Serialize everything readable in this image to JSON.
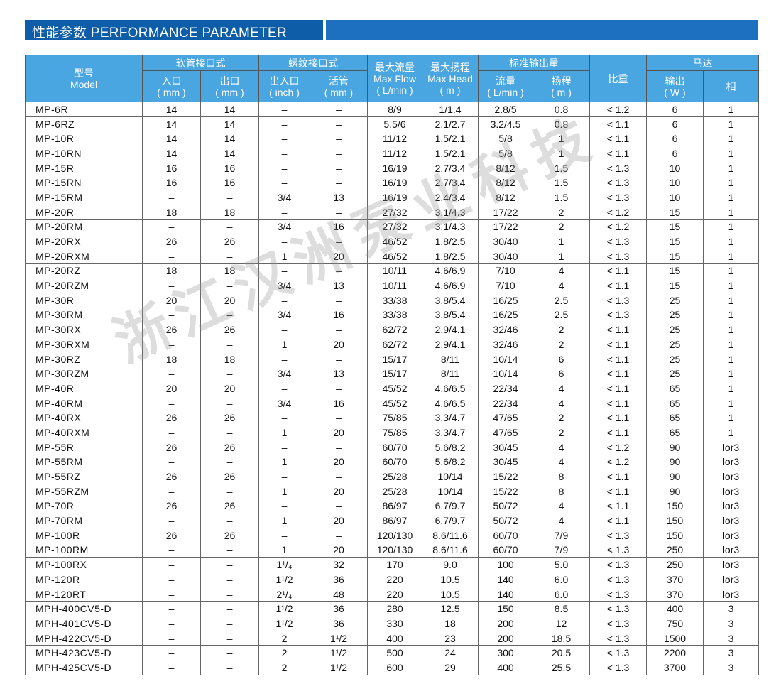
{
  "header": {
    "title": "性能参数 PERFORMANCE PARAMETER"
  },
  "watermark": "浙江汉洲泵业科技",
  "table": {
    "head_row1": [
      [
        "型号",
        "Model"
      ],
      [
        "软管接口式"
      ],
      [
        "螺纹接口式"
      ],
      [
        "最大流量",
        "Max Flow",
        "( L/min )"
      ],
      [
        "最大扬程",
        "Max Head",
        "( m )"
      ],
      [
        "标准输出量"
      ],
      [
        "比重"
      ],
      [
        "马达"
      ]
    ],
    "head_row2": [
      [
        "入口",
        "( mm )"
      ],
      [
        "出口",
        "( mm )"
      ],
      [
        "出入口",
        "( inch )"
      ],
      [
        "活管",
        "( mm )"
      ],
      [
        "流量",
        "( L/min )"
      ],
      [
        "扬程",
        "( m )"
      ],
      [
        "输出",
        "( W )"
      ],
      [
        "相"
      ]
    ],
    "rows": [
      [
        "MP-6R",
        "14",
        "14",
        "–",
        "–",
        "8/9",
        "1/1.4",
        "2.8/5",
        "0.8",
        "< 1.2",
        "6",
        "1"
      ],
      [
        "MP-6RZ",
        "14",
        "14",
        "–",
        "–",
        "5.5/6",
        "2.1/2.7",
        "3.2/4.5",
        "0.8",
        "< 1.1",
        "6",
        "1"
      ],
      [
        "MP-10R",
        "14",
        "14",
        "–",
        "–",
        "11/12",
        "1.5/2.1",
        "5/8",
        "1",
        "< 1.1",
        "6",
        "1"
      ],
      [
        "MP-10RN",
        "14",
        "14",
        "–",
        "–",
        "11/12",
        "1.5/2.1",
        "5/8",
        "1",
        "< 1.1",
        "6",
        "1"
      ],
      [
        "MP-15R",
        "16",
        "16",
        "–",
        "–",
        "16/19",
        "2.7/3.4",
        "8/12",
        "1.5",
        "< 1.3",
        "10",
        "1"
      ],
      [
        "MP-15RN",
        "16",
        "16",
        "–",
        "–",
        "16/19",
        "2.7/3.4",
        "8/12",
        "1.5",
        "< 1.3",
        "10",
        "1"
      ],
      [
        "MP-15RM",
        "–",
        "–",
        "3/4",
        "13",
        "16/19",
        "2.4/3.4",
        "8/12",
        "1.5",
        "< 1.3",
        "10",
        "1"
      ],
      [
        "MP-20R",
        "18",
        "18",
        "–",
        "–",
        "27/32",
        "3.1/4.3",
        "17/22",
        "2",
        "< 1.2",
        "15",
        "1"
      ],
      [
        "MP-20RM",
        "–",
        "–",
        "3/4",
        "16",
        "27/32",
        "3.1/4.3",
        "17/22",
        "2",
        "< 1.2",
        "15",
        "1"
      ],
      [
        "MP-20RX",
        "26",
        "26",
        "–",
        "–",
        "46/52",
        "1.8/2.5",
        "30/40",
        "1",
        "< 1.3",
        "15",
        "1"
      ],
      [
        "MP-20RXM",
        "–",
        "–",
        "1",
        "20",
        "46/52",
        "1.8/2.5",
        "30/40",
        "1",
        "< 1.3",
        "15",
        "1"
      ],
      [
        "MP-20RZ",
        "18",
        "18",
        "–",
        "–",
        "10/11",
        "4.6/6.9",
        "7/10",
        "4",
        "< 1.1",
        "15",
        "1"
      ],
      [
        "MP-20RZM",
        "–",
        "–",
        "3/4",
        "13",
        "10/11",
        "4.6/6.9",
        "7/10",
        "4",
        "< 1.1",
        "15",
        "1"
      ],
      [
        "MP-30R",
        "20",
        "20",
        "–",
        "–",
        "33/38",
        "3.8/5.4",
        "16/25",
        "2.5",
        "< 1.3",
        "25",
        "1"
      ],
      [
        "MP-30RM",
        "–",
        "–",
        "3/4",
        "16",
        "33/38",
        "3.8/5.4",
        "16/25",
        "2.5",
        "< 1.3",
        "25",
        "1"
      ],
      [
        "MP-30RX",
        "26",
        "26",
        "–",
        "–",
        "62/72",
        "2.9/4.1",
        "32/46",
        "2",
        "< 1.1",
        "25",
        "1"
      ],
      [
        "MP-30RXM",
        "–",
        "–",
        "1",
        "20",
        "62/72",
        "2.9/4.1",
        "32/46",
        "2",
        "< 1.1",
        "25",
        "1"
      ],
      [
        "MP-30RZ",
        "18",
        "18",
        "–",
        "–",
        "15/17",
        "8/11",
        "10/14",
        "6",
        "< 1.1",
        "25",
        "1"
      ],
      [
        "MP-30RZM",
        "–",
        "–",
        "3/4",
        "13",
        "15/17",
        "8/11",
        "10/14",
        "6",
        "< 1.1",
        "25",
        "1"
      ],
      [
        "MP-40R",
        "20",
        "20",
        "–",
        "–",
        "45/52",
        "4.6/6.5",
        "22/34",
        "4",
        "< 1.1",
        "65",
        "1"
      ],
      [
        "MP-40RM",
        "–",
        "–",
        "3/4",
        "16",
        "45/52",
        "4.6/6.5",
        "22/34",
        "4",
        "< 1.1",
        "65",
        "1"
      ],
      [
        "MP-40RX",
        "26",
        "26",
        "–",
        "–",
        "75/85",
        "3.3/4.7",
        "47/65",
        "2",
        "< 1.1",
        "65",
        "1"
      ],
      [
        "MP-40RXM",
        "–",
        "–",
        "1",
        "20",
        "75/85",
        "3.3/4.7",
        "47/65",
        "2",
        "< 1.1",
        "65",
        "1"
      ],
      [
        "MP-55R",
        "26",
        "26",
        "–",
        "–",
        "60/70",
        "5.6/8.2",
        "30/45",
        "4",
        "< 1.2",
        "90",
        "lor3"
      ],
      [
        "MP-55RM",
        "–",
        "–",
        "1",
        "20",
        "60/70",
        "5.6/8.2",
        "30/45",
        "4",
        "< 1.2",
        "90",
        "lor3"
      ],
      [
        "MP-55RZ",
        "26",
        "26",
        "–",
        "–",
        "25/28",
        "10/14",
        "15/22",
        "8",
        "< 1.1",
        "90",
        "lor3"
      ],
      [
        "MP-55RZM",
        "–",
        "–",
        "1",
        "20",
        "25/28",
        "10/14",
        "15/22",
        "8",
        "< 1.1",
        "90",
        "lor3"
      ],
      [
        "MP-70R",
        "26",
        "26",
        "–",
        "–",
        "86/97",
        "6.7/9.7",
        "50/72",
        "4",
        "< 1.1",
        "150",
        "lor3"
      ],
      [
        "MP-70RM",
        "–",
        "–",
        "1",
        "20",
        "86/97",
        "6.7/9.7",
        "50/72",
        "4",
        "< 1.1",
        "150",
        "lor3"
      ],
      [
        "MP-100R",
        "26",
        "26",
        "–",
        "–",
        "120/130",
        "8.6/11.6",
        "60/70",
        "7/9",
        "< 1.3",
        "150",
        "lor3"
      ],
      [
        "MP-100RM",
        "–",
        "–",
        "1",
        "20",
        "120/130",
        "8.6/11.6",
        "60/70",
        "7/9",
        "< 1.3",
        "250",
        "lor3"
      ],
      [
        "MP-100RX",
        "–",
        "–",
        "1¹/₄",
        "32",
        "170",
        "9.0",
        "100",
        "5.0",
        "< 1.3",
        "250",
        "lor3"
      ],
      [
        "MP-120R",
        "–",
        "–",
        "1¹/2",
        "36",
        "220",
        "10.5",
        "140",
        "6.0",
        "< 1.3",
        "370",
        "lor3"
      ],
      [
        "MP-120RT",
        "–",
        "–",
        "2¹/₄",
        "48",
        "220",
        "10.5",
        "140",
        "6.0",
        "< 1.3",
        "370",
        "lor3"
      ],
      [
        "MPH-400CV5-D",
        "–",
        "–",
        "1¹/2",
        "36",
        "280",
        "12.5",
        "150",
        "8.5",
        "< 1.3",
        "400",
        "3"
      ],
      [
        "MPH-401CV5-D",
        "–",
        "–",
        "1¹/2",
        "36",
        "330",
        "18",
        "200",
        "12",
        "< 1.3",
        "750",
        "3"
      ],
      [
        "MPH-422CV5-D",
        "–",
        "–",
        "2",
        "1¹/2",
        "400",
        "23",
        "200",
        "18.5",
        "< 1.3",
        "1500",
        "3"
      ],
      [
        "MPH-423CV5-D",
        "–",
        "–",
        "2",
        "1¹/2",
        "500",
        "24",
        "300",
        "20.5",
        "< 1.3",
        "2200",
        "3"
      ],
      [
        "MPH-425CV5-D",
        "–",
        "–",
        "2",
        "1¹/2",
        "600",
        "29",
        "400",
        "25.5",
        "< 1.3",
        "3700",
        "3"
      ]
    ]
  }
}
